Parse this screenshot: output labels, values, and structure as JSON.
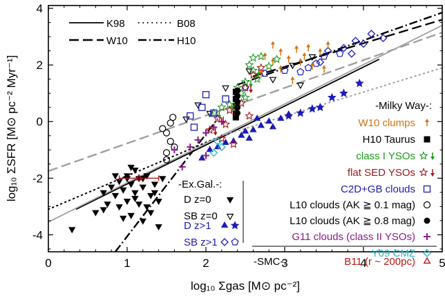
{
  "chart_data": {
    "type": "scatter",
    "xlabel": "log₁₀ Σgas [M⊙ pc⁻²]",
    "ylabel": "log₁₀ ΣSFR [M⊙ pc⁻² Myr⁻¹]",
    "xlim": [
      0,
      5
    ],
    "ylim": [
      -4.6,
      4.1
    ],
    "x_ticks": [
      "0",
      "1",
      "2",
      "3",
      "4",
      "5"
    ],
    "y_ticks": [
      "-4",
      "-2",
      "0",
      "2",
      "4"
    ],
    "lines": [
      {
        "name": "K98",
        "style": "solid",
        "color": "#000000",
        "x": [
          0.35,
          4.2
        ],
        "y": [
          -3.1,
          2.2
        ]
      },
      {
        "name": "B08",
        "style": "dotted",
        "color": "#000000",
        "x": [
          0.0,
          2.2
        ],
        "y": [
          -3.1,
          -0.5
        ]
      },
      {
        "name": "B08 ext",
        "style": "dotted",
        "color": "#a0a0a0",
        "x": [
          2.2,
          5.0
        ],
        "y": [
          -0.5,
          1.9
        ]
      },
      {
        "name": "W10",
        "style": "dashed",
        "color": "#000000",
        "x": [
          2.6,
          5.0
        ],
        "y": [
          1.6,
          3.6
        ]
      },
      {
        "name": "W10 ext",
        "style": "dashed",
        "color": "#a0a0a0",
        "x": [
          0.0,
          5.0
        ],
        "y": [
          -1.75,
          3.15
        ]
      },
      {
        "name": "H10",
        "style": "dashdot",
        "color": "#000000",
        "x": [
          0.85,
          2.15
        ],
        "y": [
          -4.6,
          0.1
        ]
      },
      {
        "name": "H10 up",
        "style": "dashdot",
        "color": "#000000",
        "x": [
          2.4,
          5.0
        ],
        "y": [
          1.3,
          3.85
        ]
      },
      {
        "name": "solid gray",
        "style": "solid",
        "color": "#a0a0a0",
        "x": [
          0.0,
          5.0
        ],
        "y": [
          -3.55,
          3.4
        ]
      }
    ],
    "legend_lines": {
      "k98": "K98",
      "b08": "B08",
      "w10": "W10",
      "h10": "H10"
    },
    "legend_groups": {
      "milky_way": "-Milky Way-:",
      "ex_gal": "-Ex.Gal.-:",
      "smc": "-SMC-:"
    },
    "legend_entries": [
      {
        "label": "W10 clumps",
        "color": "#d0730f"
      },
      {
        "label": "H10 Taurus",
        "color": "#000000"
      },
      {
        "label": "class I YSOs",
        "color": "#1a9a1a"
      },
      {
        "label": "flat SED YSOs",
        "color": "#a01818"
      },
      {
        "label": "C2D+GB clouds",
        "color": "#1c1cb4"
      },
      {
        "label": "L10 clouds (AK ≧ 0.1 mag)",
        "color": "#000000"
      },
      {
        "label": "L10 clouds (AK ≧ 0.8 mag)",
        "color": "#000000"
      },
      {
        "label": "G11 clouds (class II YSOs)",
        "color": "#8a1a8a"
      },
      {
        "label": "Y09 CMZ",
        "color": "#20b8c8"
      },
      {
        "label": "B11 (r ~ 200pc)",
        "color": "#b81818"
      }
    ],
    "ex_gal_entries": [
      {
        "label": "D  z=0",
        "color": "#000000"
      },
      {
        "label": "SB  z=0",
        "color": "#000000"
      },
      {
        "label": "D  z>1",
        "color": "#1c1cb4"
      },
      {
        "label": "SB  z>1",
        "color": "#1c1cb4"
      }
    ],
    "series": [
      {
        "name": "D z=0",
        "marker": "tri-down-filled",
        "color": "#000000",
        "points": [
          [
            0.3,
            -3.8
          ],
          [
            0.6,
            -3.2
          ],
          [
            0.7,
            -2.5
          ],
          [
            0.75,
            -2.9
          ],
          [
            0.8,
            -2.3
          ],
          [
            0.85,
            -2.6
          ],
          [
            0.9,
            -2.1
          ],
          [
            0.9,
            -3.0
          ],
          [
            0.95,
            -2.4
          ],
          [
            1.0,
            -2.8
          ],
          [
            1.0,
            -1.9
          ],
          [
            1.05,
            -2.2
          ],
          [
            1.05,
            -3.3
          ],
          [
            1.1,
            -2.5
          ],
          [
            1.1,
            -1.7
          ],
          [
            1.15,
            -2.0
          ],
          [
            1.15,
            -2.9
          ],
          [
            1.2,
            -2.3
          ],
          [
            1.2,
            -3.5
          ],
          [
            1.25,
            -1.9
          ],
          [
            1.3,
            -2.6
          ],
          [
            1.3,
            -3.2
          ],
          [
            1.35,
            -2.2
          ],
          [
            1.4,
            -2.8
          ],
          [
            1.45,
            -2.0
          ],
          [
            0.85,
            -1.9
          ],
          [
            0.95,
            -3.4
          ],
          [
            1.0,
            -2.0
          ],
          [
            1.1,
            -2.7
          ],
          [
            1.2,
            -2.0
          ],
          [
            1.35,
            -2.5
          ],
          [
            0.7,
            -3.1
          ],
          [
            1.05,
            -1.6
          ],
          [
            1.25,
            -3.0
          ],
          [
            1.4,
            -3.7
          ]
        ]
      },
      {
        "name": "SB z=0",
        "marker": "tri-down-open",
        "color": "#000000",
        "points": [
          [
            1.9,
            0.6
          ],
          [
            2.05,
            0.3
          ],
          [
            2.25,
            1.2
          ],
          [
            2.55,
            1.8
          ],
          [
            2.85,
            1.5
          ],
          [
            3.1,
            2.0
          ],
          [
            3.2,
            1.3
          ],
          [
            3.35,
            2.3
          ],
          [
            1.75,
            0.1
          ]
        ]
      },
      {
        "name": "D z>1",
        "marker": "tri-up-filled",
        "color": "#1c1cb4",
        "points": [
          [
            1.95,
            -1.3
          ],
          [
            2.05,
            -1.0
          ],
          [
            2.15,
            -0.9
          ],
          [
            2.25,
            -0.75
          ],
          [
            2.35,
            -0.7
          ],
          [
            2.45,
            -0.5
          ],
          [
            2.5,
            -0.35
          ],
          [
            2.6,
            -0.3
          ],
          [
            2.7,
            -0.15
          ],
          [
            2.8,
            0.0
          ],
          [
            2.85,
            -0.2
          ],
          [
            2.95,
            0.1
          ],
          [
            3.05,
            0.25
          ],
          [
            2.55,
            -0.6
          ],
          [
            2.65,
            0.1
          ]
        ]
      },
      {
        "name": "D z>1 star",
        "marker": "star-filled",
        "color": "#1c1cb4",
        "points": [
          [
            3.05,
            0.2
          ],
          [
            3.2,
            0.3
          ],
          [
            3.35,
            0.45
          ],
          [
            3.45,
            0.5
          ],
          [
            3.6,
            0.85
          ],
          [
            3.75,
            1.0
          ],
          [
            3.95,
            1.35
          ]
        ]
      },
      {
        "name": "SB z>1",
        "marker": "diamond-open",
        "color": "#1c1cb4",
        "points": [
          [
            3.55,
            2.5
          ],
          [
            3.75,
            2.6
          ],
          [
            3.85,
            2.4
          ],
          [
            3.9,
            2.85
          ],
          [
            4.1,
            3.1
          ],
          [
            4.25,
            2.95
          ],
          [
            3.45,
            2.1
          ],
          [
            4.0,
            2.75
          ]
        ]
      },
      {
        "name": "SB z>1 pent",
        "marker": "pentagon-open",
        "color": "#1c1cb4",
        "points": [
          [
            2.5,
            1.2
          ],
          [
            2.75,
            1.7
          ],
          [
            3.0,
            1.8
          ],
          [
            3.2,
            1.75
          ],
          [
            3.3,
            1.9
          ],
          [
            3.5,
            2.3
          ],
          [
            3.7,
            2.4
          ],
          [
            3.4,
            2.05
          ]
        ]
      },
      {
        "name": "W10 clumps",
        "marker": "arrow-up",
        "color": "#d0730f",
        "points": [
          [
            2.75,
            2.3
          ],
          [
            2.85,
            2.1
          ],
          [
            2.95,
            2.45
          ],
          [
            3.05,
            2.2
          ],
          [
            3.15,
            2.55
          ],
          [
            3.25,
            2.3
          ],
          [
            3.35,
            1.95
          ],
          [
            3.45,
            2.45
          ],
          [
            3.55,
            2.7
          ],
          [
            2.7,
            1.7
          ],
          [
            3.1,
            1.45
          ],
          [
            2.95,
            1.85
          ],
          [
            3.3,
            2.6
          ],
          [
            3.5,
            1.85
          ],
          [
            2.85,
            2.7
          ],
          [
            3.2,
            2.1
          ]
        ]
      },
      {
        "name": "H10 Taurus",
        "marker": "square-filled",
        "color": "#000000",
        "points": [
          [
            2.38,
            0.3
          ],
          [
            2.38,
            0.55
          ],
          [
            2.38,
            0.8
          ],
          [
            2.38,
            1.05
          ],
          [
            2.38,
            0.15
          ]
        ]
      },
      {
        "name": "class I YSOs",
        "marker": "star-open",
        "color": "#1a9a1a",
        "points": [
          [
            2.1,
            0.3
          ],
          [
            2.3,
            0.6
          ],
          [
            2.5,
            1.4
          ],
          [
            2.6,
            1.8
          ],
          [
            2.7,
            2.3
          ],
          [
            2.55,
            2.0
          ],
          [
            2.45,
            1.0
          ],
          [
            2.2,
            0.5
          ],
          [
            2.65,
            1.5
          ],
          [
            2.4,
            1.2
          ],
          [
            2.8,
            1.95
          ],
          [
            2.35,
            0.45
          ],
          [
            2.6,
            2.25
          ],
          [
            2.5,
            0.85
          ],
          [
            2.9,
            2.2
          ]
        ]
      },
      {
        "name": "flat SED YSOs",
        "marker": "star-open",
        "color": "#a01818",
        "points": [
          [
            2.05,
            -0.3
          ],
          [
            2.15,
            0.1
          ],
          [
            2.3,
            0.4
          ],
          [
            2.5,
            1.2
          ],
          [
            2.6,
            1.65
          ],
          [
            2.45,
            0.65
          ],
          [
            2.25,
            -0.1
          ],
          [
            2.7,
            1.9
          ],
          [
            2.35,
            -0.8
          ],
          [
            2.2,
            -0.6
          ],
          [
            2.55,
            0.2
          ]
        ]
      },
      {
        "name": "C2D+GB clouds",
        "marker": "square-open",
        "color": "#1c1cb4",
        "points": [
          [
            1.8,
            0.2
          ],
          [
            1.95,
            0.5
          ],
          [
            2.1,
            0.3
          ],
          [
            2.25,
            0.8
          ],
          [
            1.85,
            -0.2
          ],
          [
            2.0,
            0.95
          ]
        ]
      },
      {
        "name": "L10 clouds AK>=0.1",
        "marker": "circle-open",
        "color": "#000000",
        "points": [
          [
            1.5,
            -0.4
          ],
          [
            1.55,
            -0.7
          ],
          [
            1.5,
            -1.1
          ],
          [
            1.55,
            -0.05
          ],
          [
            1.6,
            -0.9
          ],
          [
            1.45,
            -0.25
          ],
          [
            1.5,
            -1.35
          ],
          [
            1.58,
            0.15
          ]
        ]
      },
      {
        "name": "L10 clouds AK>=0.8",
        "marker": "circle-filled",
        "color": "#000000",
        "points": [
          [
            2.4,
            0.5
          ],
          [
            2.4,
            0.7
          ],
          [
            2.4,
            0.9
          ],
          [
            2.4,
            1.1
          ],
          [
            2.4,
            0.3
          ]
        ]
      },
      {
        "name": "G11 clouds",
        "marker": "plus",
        "color": "#8a1a8a",
        "points": [
          [
            1.8,
            -0.9
          ],
          [
            1.9,
            -0.65
          ],
          [
            2.0,
            -0.4
          ],
          [
            2.1,
            -0.2
          ],
          [
            2.2,
            0.0
          ],
          [
            1.6,
            -1.0
          ],
          [
            1.7,
            -1.6
          ],
          [
            2.0,
            -1.2
          ]
        ]
      },
      {
        "name": "Y09 CMZ",
        "marker": "diamond-open",
        "color": "#20b8c8",
        "points": [
          [
            2.1,
            -1.1
          ],
          [
            2.2,
            -0.9
          ],
          [
            2.15,
            -0.7
          ]
        ]
      },
      {
        "name": "B11",
        "marker": "tri-up-open",
        "color": "#b81818",
        "errx": [
          0.9,
          1.4
        ],
        "points": [
          [
            1.15,
            -2.0
          ]
        ]
      }
    ]
  }
}
